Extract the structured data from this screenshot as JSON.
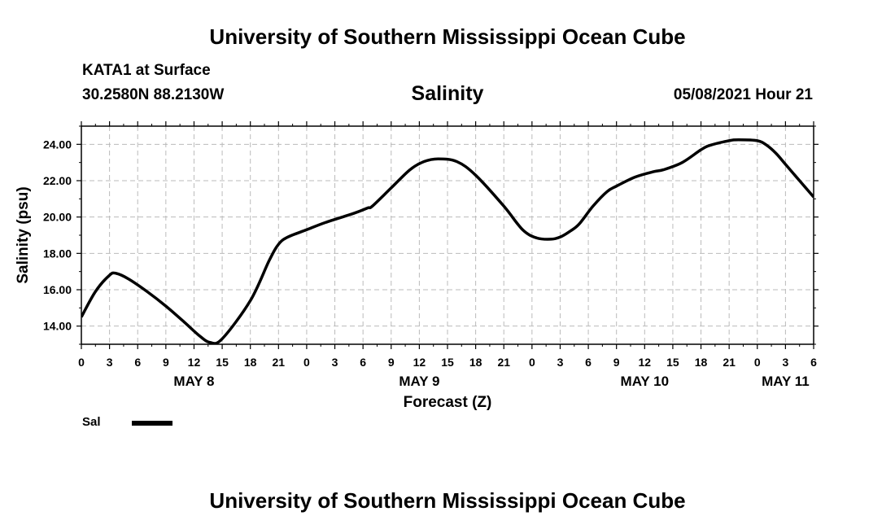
{
  "header": {
    "title": "University of Southern Mississippi Ocean Cube",
    "station": "KATA1 at Surface",
    "coords": "30.2580N  88.2130W",
    "chart_title": "Salinity",
    "datetime": "05/08/2021 Hour 21"
  },
  "footer": {
    "title": "University of Southern Mississippi Ocean Cube"
  },
  "legend": {
    "label": "Sal",
    "color": "#000000"
  },
  "chart_data": {
    "type": "line",
    "title": "Salinity",
    "xlabel": "Forecast (Z)",
    "ylabel": "Salinity (psu)",
    "xlim": [
      0,
      78
    ],
    "ylim": [
      13,
      25
    ],
    "grid": true,
    "x_tick_labels": [
      "0",
      "3",
      "6",
      "9",
      "12",
      "15",
      "18",
      "21",
      "0",
      "3",
      "6",
      "9",
      "12",
      "15",
      "18",
      "21",
      "0",
      "3",
      "6",
      "9",
      "12",
      "15",
      "18",
      "21",
      "0",
      "3",
      "6"
    ],
    "y_tick_values": [
      14,
      16,
      18,
      20,
      22,
      24
    ],
    "y_tick_labels": [
      "14.00",
      "16.00",
      "18.00",
      "20.00",
      "22.00",
      "24.00"
    ],
    "day_labels": [
      {
        "label": "MAY 8",
        "hour": 12
      },
      {
        "label": "MAY 9",
        "hour": 36
      },
      {
        "label": "MAY 10",
        "hour": 60
      },
      {
        "label": "MAY 11",
        "hour": 75
      }
    ],
    "series": [
      {
        "name": "Sal",
        "x": [
          0,
          1.5,
          3,
          3.7,
          5,
          7,
          9,
          11,
          12.5,
          13.7,
          15,
          18,
          20,
          21,
          22,
          24,
          26,
          29,
          30.5,
          31,
          33,
          35,
          36.5,
          38,
          40,
          42,
          45,
          47,
          48.5,
          50,
          51,
          52,
          53,
          54.5,
          56,
          57,
          59,
          61,
          62,
          64,
          66,
          67,
          69,
          70,
          72,
          73,
          74,
          75,
          76,
          77,
          78
        ],
        "y": [
          14.5,
          15.9,
          16.8,
          16.9,
          16.6,
          15.9,
          15.1,
          14.2,
          13.5,
          13.1,
          13.3,
          15.4,
          17.6,
          18.5,
          18.9,
          19.3,
          19.7,
          20.2,
          20.5,
          20.6,
          21.6,
          22.6,
          23.05,
          23.2,
          23.05,
          22.3,
          20.6,
          19.3,
          18.85,
          18.78,
          18.9,
          19.2,
          19.6,
          20.6,
          21.4,
          21.7,
          22.2,
          22.5,
          22.6,
          23.0,
          23.7,
          23.95,
          24.2,
          24.25,
          24.2,
          23.95,
          23.5,
          22.9,
          22.3,
          21.7,
          21.1
        ]
      }
    ]
  }
}
